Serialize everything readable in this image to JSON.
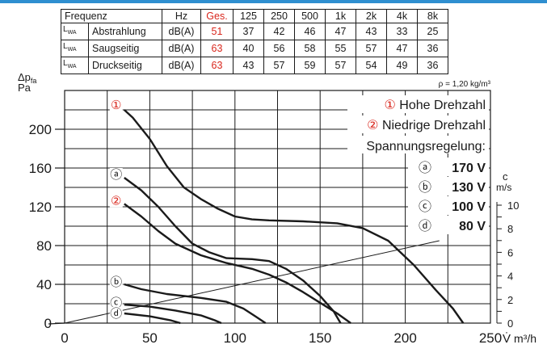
{
  "table": {
    "header": [
      "Frequenz",
      "Hz",
      "Ges.",
      "125",
      "250",
      "500",
      "1k",
      "2k",
      "4k",
      "8k"
    ],
    "rows": [
      {
        "symbol": "L",
        "symbol_sub": "WA",
        "name": "Abstrahlung",
        "unit": "dB(A)",
        "total": "51",
        "values": [
          "37",
          "42",
          "46",
          "47",
          "43",
          "33",
          "25"
        ]
      },
      {
        "symbol": "L",
        "symbol_sub": "WA",
        "name": "Saugseitig",
        "unit": "dB(A)",
        "total": "63",
        "values": [
          "40",
          "56",
          "58",
          "55",
          "57",
          "47",
          "36"
        ]
      },
      {
        "symbol": "L",
        "symbol_sub": "WA",
        "name": "Druckseitig",
        "unit": "dB(A)",
        "total": "63",
        "values": [
          "43",
          "57",
          "59",
          "57",
          "54",
          "49",
          "36"
        ]
      }
    ]
  },
  "chart_data": {
    "type": "line",
    "density_note": "ρ = 1,20 kg/m³",
    "ylabel_symbol": "Δp",
    "ylabel_sub": "fa",
    "ylabel_unit": "Pa",
    "xlabel_symbol": "V̇",
    "xlabel_unit": "m³/h",
    "right_axis_symbol": "c",
    "right_axis_unit": "m/s",
    "xlim": [
      0,
      250
    ],
    "ylim": [
      0,
      240
    ],
    "x_ticks": [
      "0",
      "50",
      "100",
      "150",
      "200",
      "250"
    ],
    "y_ticks": [
      "0",
      "40",
      "80",
      "120",
      "160",
      "200"
    ],
    "right_ticks": [
      "0",
      "2",
      "4",
      "6",
      "8",
      "10"
    ],
    "grid": true,
    "legend": {
      "hohe": {
        "marker": "①",
        "text": "Hohe Drehzahl"
      },
      "niedrige": {
        "marker": "②",
        "text": "Niedrige Drehzahl"
      },
      "spannung_title": "Spannungsregelung:",
      "items": [
        {
          "marker": "ⓐ",
          "text": "170 V"
        },
        {
          "marker": "ⓑ",
          "text": "130 V"
        },
        {
          "marker": "ⓒ",
          "text": "100 V"
        },
        {
          "marker": "ⓓ",
          "text": "80 V"
        }
      ]
    },
    "series": [
      {
        "marker": "①",
        "color": "#d9261c",
        "points": [
          [
            35,
            220
          ],
          [
            40,
            212
          ],
          [
            50,
            190
          ],
          [
            60,
            162
          ],
          [
            70,
            140
          ],
          [
            80,
            128
          ],
          [
            90,
            118
          ],
          [
            100,
            110
          ],
          [
            110,
            107
          ],
          [
            120,
            106
          ],
          [
            140,
            105
          ],
          [
            160,
            103
          ],
          [
            175,
            98
          ],
          [
            190,
            85
          ],
          [
            205,
            60
          ],
          [
            218,
            34
          ],
          [
            228,
            15
          ],
          [
            234,
            0
          ]
        ]
      },
      {
        "marker": "ⓐ",
        "color": "#1a1a1a",
        "points": [
          [
            35,
            150
          ],
          [
            45,
            137
          ],
          [
            55,
            120
          ],
          [
            65,
            100
          ],
          [
            75,
            82
          ],
          [
            85,
            73
          ],
          [
            95,
            67
          ],
          [
            110,
            66
          ],
          [
            120,
            64
          ],
          [
            130,
            56
          ],
          [
            140,
            44
          ],
          [
            150,
            28
          ],
          [
            158,
            12
          ],
          [
            162,
            0
          ]
        ]
      },
      {
        "marker": "②",
        "color": "#d9261c",
        "points": [
          [
            35,
            123
          ],
          [
            45,
            110
          ],
          [
            55,
            95
          ],
          [
            65,
            82
          ],
          [
            80,
            70
          ],
          [
            95,
            62
          ],
          [
            110,
            56
          ],
          [
            120,
            50
          ],
          [
            130,
            42
          ],
          [
            140,
            32
          ],
          [
            150,
            21
          ],
          [
            160,
            10
          ],
          [
            168,
            0
          ]
        ]
      },
      {
        "marker": "ⓑ",
        "color": "#1a1a1a",
        "points": [
          [
            35,
            40
          ],
          [
            45,
            35
          ],
          [
            60,
            30
          ],
          [
            80,
            26
          ],
          [
            95,
            22
          ],
          [
            105,
            15
          ],
          [
            112,
            7
          ],
          [
            118,
            0
          ]
        ]
      },
      {
        "marker": "ⓒ",
        "color": "#1a1a1a",
        "points": [
          [
            35,
            19
          ],
          [
            50,
            17
          ],
          [
            65,
            13
          ],
          [
            80,
            8
          ],
          [
            88,
            3
          ],
          [
            92,
            0
          ]
        ]
      },
      {
        "marker": "ⓓ",
        "color": "#1a1a1a",
        "points": [
          [
            35,
            10
          ],
          [
            50,
            7
          ],
          [
            62,
            3
          ],
          [
            68,
            0
          ]
        ]
      }
    ],
    "velocity_line": {
      "from": [
        0,
        0
      ],
      "to": [
        220,
        85
      ]
    }
  }
}
